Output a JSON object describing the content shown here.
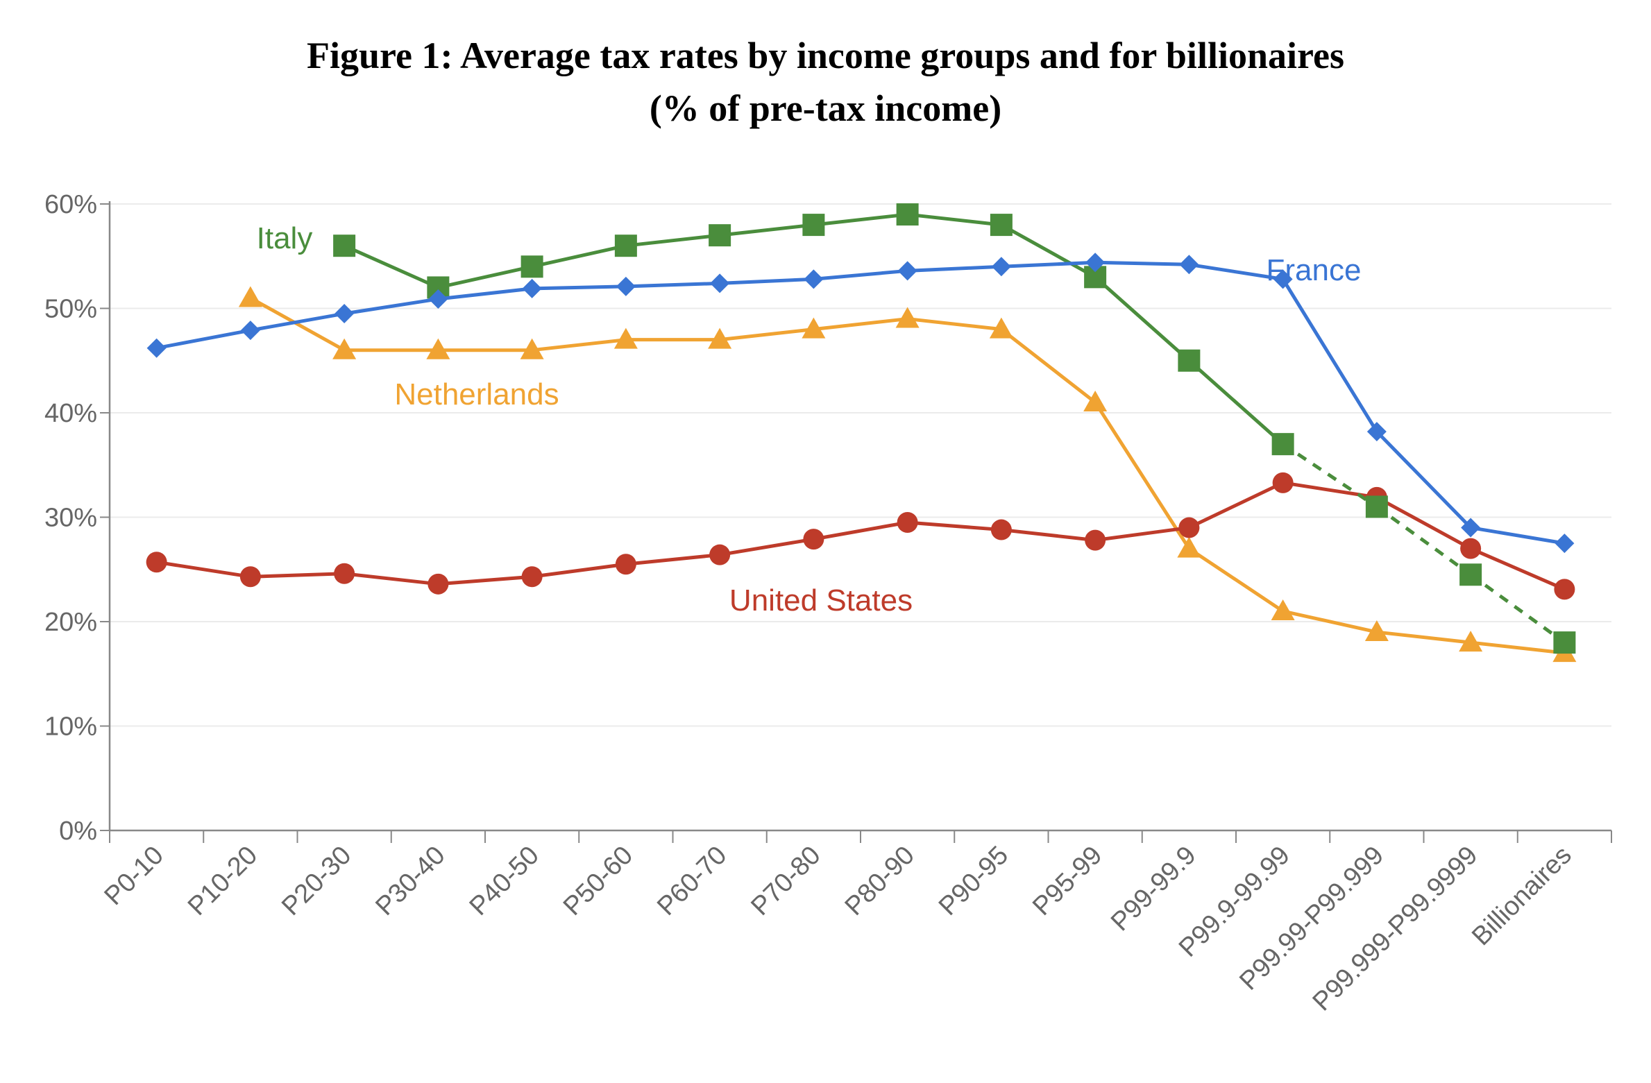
{
  "chart_data": {
    "type": "line",
    "title": "Figure 1: Average tax rates by income groups and for billionaires",
    "subtitle": "(% of pre-tax income)",
    "xlabel": "",
    "ylabel": "",
    "ylim": [
      0,
      60
    ],
    "yticks": [
      "0%",
      "10%",
      "20%",
      "30%",
      "40%",
      "50%",
      "60%"
    ],
    "grid": true,
    "categories": [
      "P0-10",
      "P10-20",
      "P20-30",
      "P30-40",
      "P40-50",
      "P50-60",
      "P60-70",
      "P70-80",
      "P80-90",
      "P90-95",
      "P95-99",
      "P99-99.9",
      "P99.9-99.99",
      "P99.99-P99.999",
      "P99.999-P99.9999",
      "Billionaires"
    ],
    "series": [
      {
        "name": "France",
        "color": "#3a75d4",
        "marker": "diamond",
        "values": [
          46.2,
          47.9,
          49.5,
          50.9,
          51.9,
          52.1,
          52.4,
          52.8,
          53.6,
          54.0,
          54.4,
          54.2,
          52.8,
          38.2,
          29.0,
          27.5
        ]
      },
      {
        "name": "Italy",
        "color": "#4a8d3c",
        "marker": "square",
        "values": [
          null,
          null,
          56,
          52,
          54,
          56,
          57,
          58,
          59,
          58,
          53,
          45,
          37,
          31,
          24.5,
          18
        ],
        "dashed_from_index": 12
      },
      {
        "name": "Netherlands",
        "color": "#f0a332",
        "marker": "triangle",
        "values": [
          null,
          51,
          46,
          46,
          46,
          47,
          47,
          48,
          49,
          48,
          41,
          27,
          21,
          19,
          18,
          17
        ]
      },
      {
        "name": "United States",
        "color": "#be3b2a",
        "marker": "circle",
        "values": [
          25.7,
          24.3,
          24.6,
          23.6,
          24.3,
          25.5,
          26.4,
          27.9,
          29.5,
          28.8,
          27.8,
          29.0,
          33.3,
          31.9,
          27.0,
          23.1
        ]
      }
    ]
  }
}
